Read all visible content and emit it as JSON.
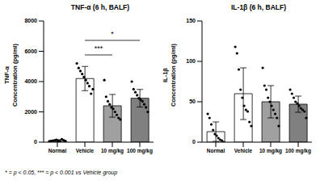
{
  "chart_data": [
    {
      "type": "bar",
      "title": "TNF-α (6 h, BALF)",
      "ylabel": [
        "TNF-α",
        "Concentration (pg/ml)"
      ],
      "categories": [
        "Normal",
        "Vehicle",
        "10 mg/kg",
        "100 mg/kg"
      ],
      "values": [
        105,
        4200,
        2400,
        2900
      ],
      "errors": [
        60,
        800,
        750,
        580
      ],
      "points": [
        [
          50,
          80,
          100,
          120,
          150,
          90,
          60,
          200,
          130,
          70
        ],
        [
          5200,
          4900,
          4700,
          4500,
          4300,
          4100,
          3900,
          3700,
          3200,
          3500
        ],
        [
          4100,
          3000,
          2700,
          2500,
          2300,
          2200,
          2000,
          1800,
          1600,
          1500
        ],
        [
          4000,
          3500,
          3300,
          3100,
          2900,
          2800,
          2700,
          2500,
          2300,
          2000
        ]
      ],
      "colors": [
        "#ffffff",
        "#ffffff",
        "#a0a0a0",
        "#808080"
      ],
      "marker": "circle",
      "ylim": [
        0,
        8000
      ],
      "yticks": [
        0,
        2000,
        4000,
        6000,
        8000
      ],
      "grid": false,
      "significance": [
        {
          "from": "Vehicle",
          "to": "10 mg/kg",
          "label": "***"
        },
        {
          "from": "Vehicle",
          "to": "100 mg/kg",
          "label": "*"
        }
      ]
    },
    {
      "type": "bar",
      "title": "IL-1β (6 h, BALF)",
      "ylabel": [
        "IL-1β",
        "Concentration (pg/ml)"
      ],
      "categories": [
        "Normal",
        "Vehicle",
        "10 mg/kg",
        "100 mg/kg"
      ],
      "values": [
        13,
        60,
        50,
        47
      ],
      "errors": [
        12,
        32,
        20,
        10
      ],
      "points": [
        [
          35,
          30,
          22,
          15,
          10,
          8,
          5,
          3,
          2,
          0
        ],
        [
          118,
          110,
          90,
          65,
          55,
          45,
          40,
          38,
          25,
          20
        ],
        [
          92,
          70,
          65,
          55,
          50,
          45,
          40,
          35,
          30,
          20
        ],
        [
          65,
          60,
          55,
          50,
          48,
          45,
          42,
          40,
          38,
          30
        ]
      ],
      "colors": [
        "#ffffff",
        "#ffffff",
        "#a0a0a0",
        "#808080"
      ],
      "marker": "circle",
      "ylim": [
        0,
        150
      ],
      "yticks": [
        0,
        50,
        100,
        150
      ],
      "grid": false,
      "significance": []
    }
  ],
  "footnote": "* = p < 0.05, *** = p < 0.001 vs Vehicle group"
}
